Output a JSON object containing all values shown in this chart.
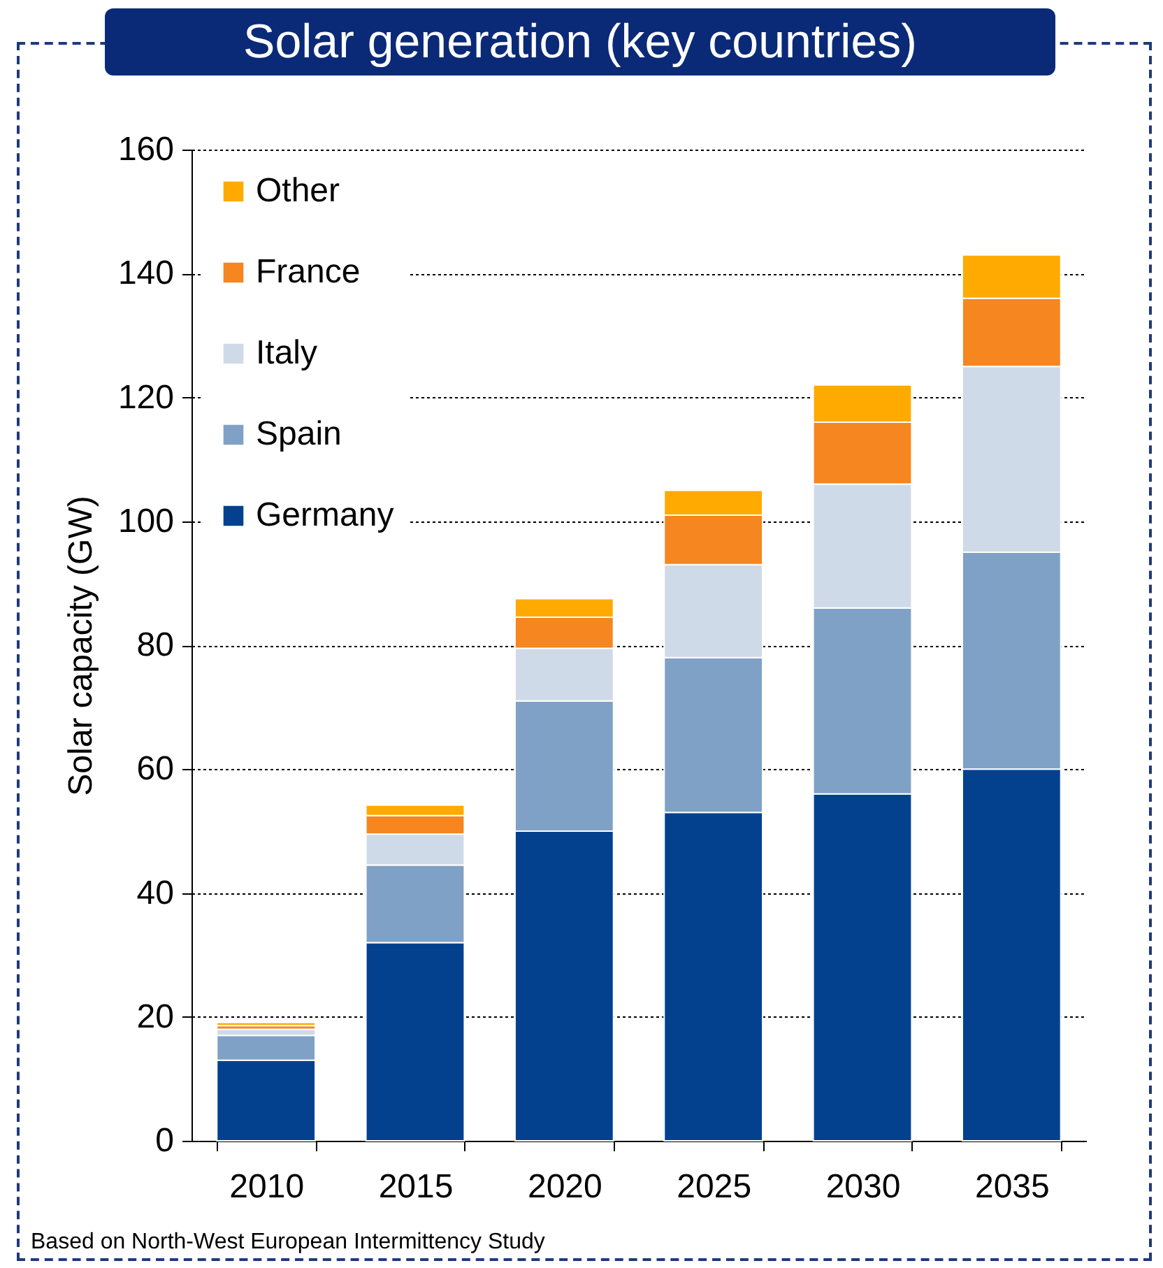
{
  "chart_data": {
    "type": "bar",
    "title": "Solar generation (key countries)",
    "ylabel": "Solar capacity (GW)",
    "categories": [
      "2010",
      "2015",
      "2020",
      "2025",
      "2030",
      "2035"
    ],
    "stacked": true,
    "series": [
      {
        "name": "Germany",
        "color": "#03418f",
        "values": [
          13,
          32,
          50,
          53,
          56,
          60
        ]
      },
      {
        "name": "Spain",
        "color": "#80a1c6",
        "values": [
          4,
          12.5,
          21,
          25,
          30,
          35
        ]
      },
      {
        "name": "Italy",
        "color": "#cfdae8",
        "values": [
          1,
          5,
          8.5,
          15,
          20,
          30
        ]
      },
      {
        "name": "France",
        "color": "#f58620",
        "values": [
          0.6,
          3,
          5,
          8,
          10,
          11
        ]
      },
      {
        "name": "Other",
        "color": "#ffaa00",
        "values": [
          0.5,
          1.7,
          3,
          4,
          6,
          7
        ]
      }
    ],
    "ylim": [
      0,
      160
    ],
    "yticks": [
      0,
      20,
      40,
      60,
      80,
      100,
      120,
      140,
      160
    ],
    "grid": "y",
    "legend": "top left",
    "annotations": [
      "Based on North-West European Intermittency Study"
    ]
  }
}
